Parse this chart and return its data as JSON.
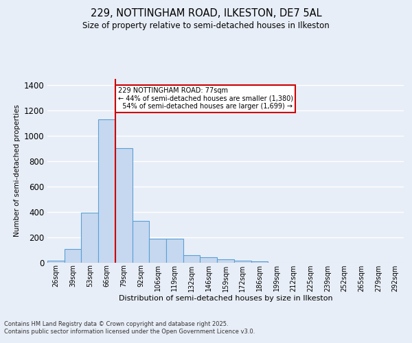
{
  "title1": "229, NOTTINGHAM ROAD, ILKESTON, DE7 5AL",
  "title2": "Size of property relative to semi-detached houses in Ilkeston",
  "xlabel": "Distribution of semi-detached houses by size in Ilkeston",
  "ylabel": "Number of semi-detached properties",
  "footer_line1": "Contains HM Land Registry data © Crown copyright and database right 2025.",
  "footer_line2": "Contains public sector information licensed under the Open Government Licence v3.0.",
  "bin_labels": [
    "26sqm",
    "39sqm",
    "53sqm",
    "66sqm",
    "79sqm",
    "92sqm",
    "106sqm",
    "119sqm",
    "132sqm",
    "146sqm",
    "159sqm",
    "172sqm",
    "186sqm",
    "199sqm",
    "212sqm",
    "225sqm",
    "239sqm",
    "252sqm",
    "265sqm",
    "279sqm",
    "292sqm"
  ],
  "bar_heights": [
    15,
    105,
    395,
    1130,
    905,
    330,
    185,
    185,
    55,
    40,
    25,
    15,
    10,
    0,
    0,
    0,
    0,
    0,
    0,
    0,
    0
  ],
  "bar_color": "#c5d8f0",
  "bar_edge_color": "#5a9fd4",
  "bar_edge_width": 0.8,
  "property_label": "229 NOTTINGHAM ROAD: 77sqm",
  "pct_smaller": 44,
  "pct_larger": 54,
  "count_smaller": 1380,
  "count_larger": 1699,
  "vline_color": "#cc0000",
  "vline_bin": 3.5,
  "annotation_box_color": "#cc0000",
  "ylim_max": 1450,
  "background_color": "#e8eef7",
  "grid_color": "white"
}
